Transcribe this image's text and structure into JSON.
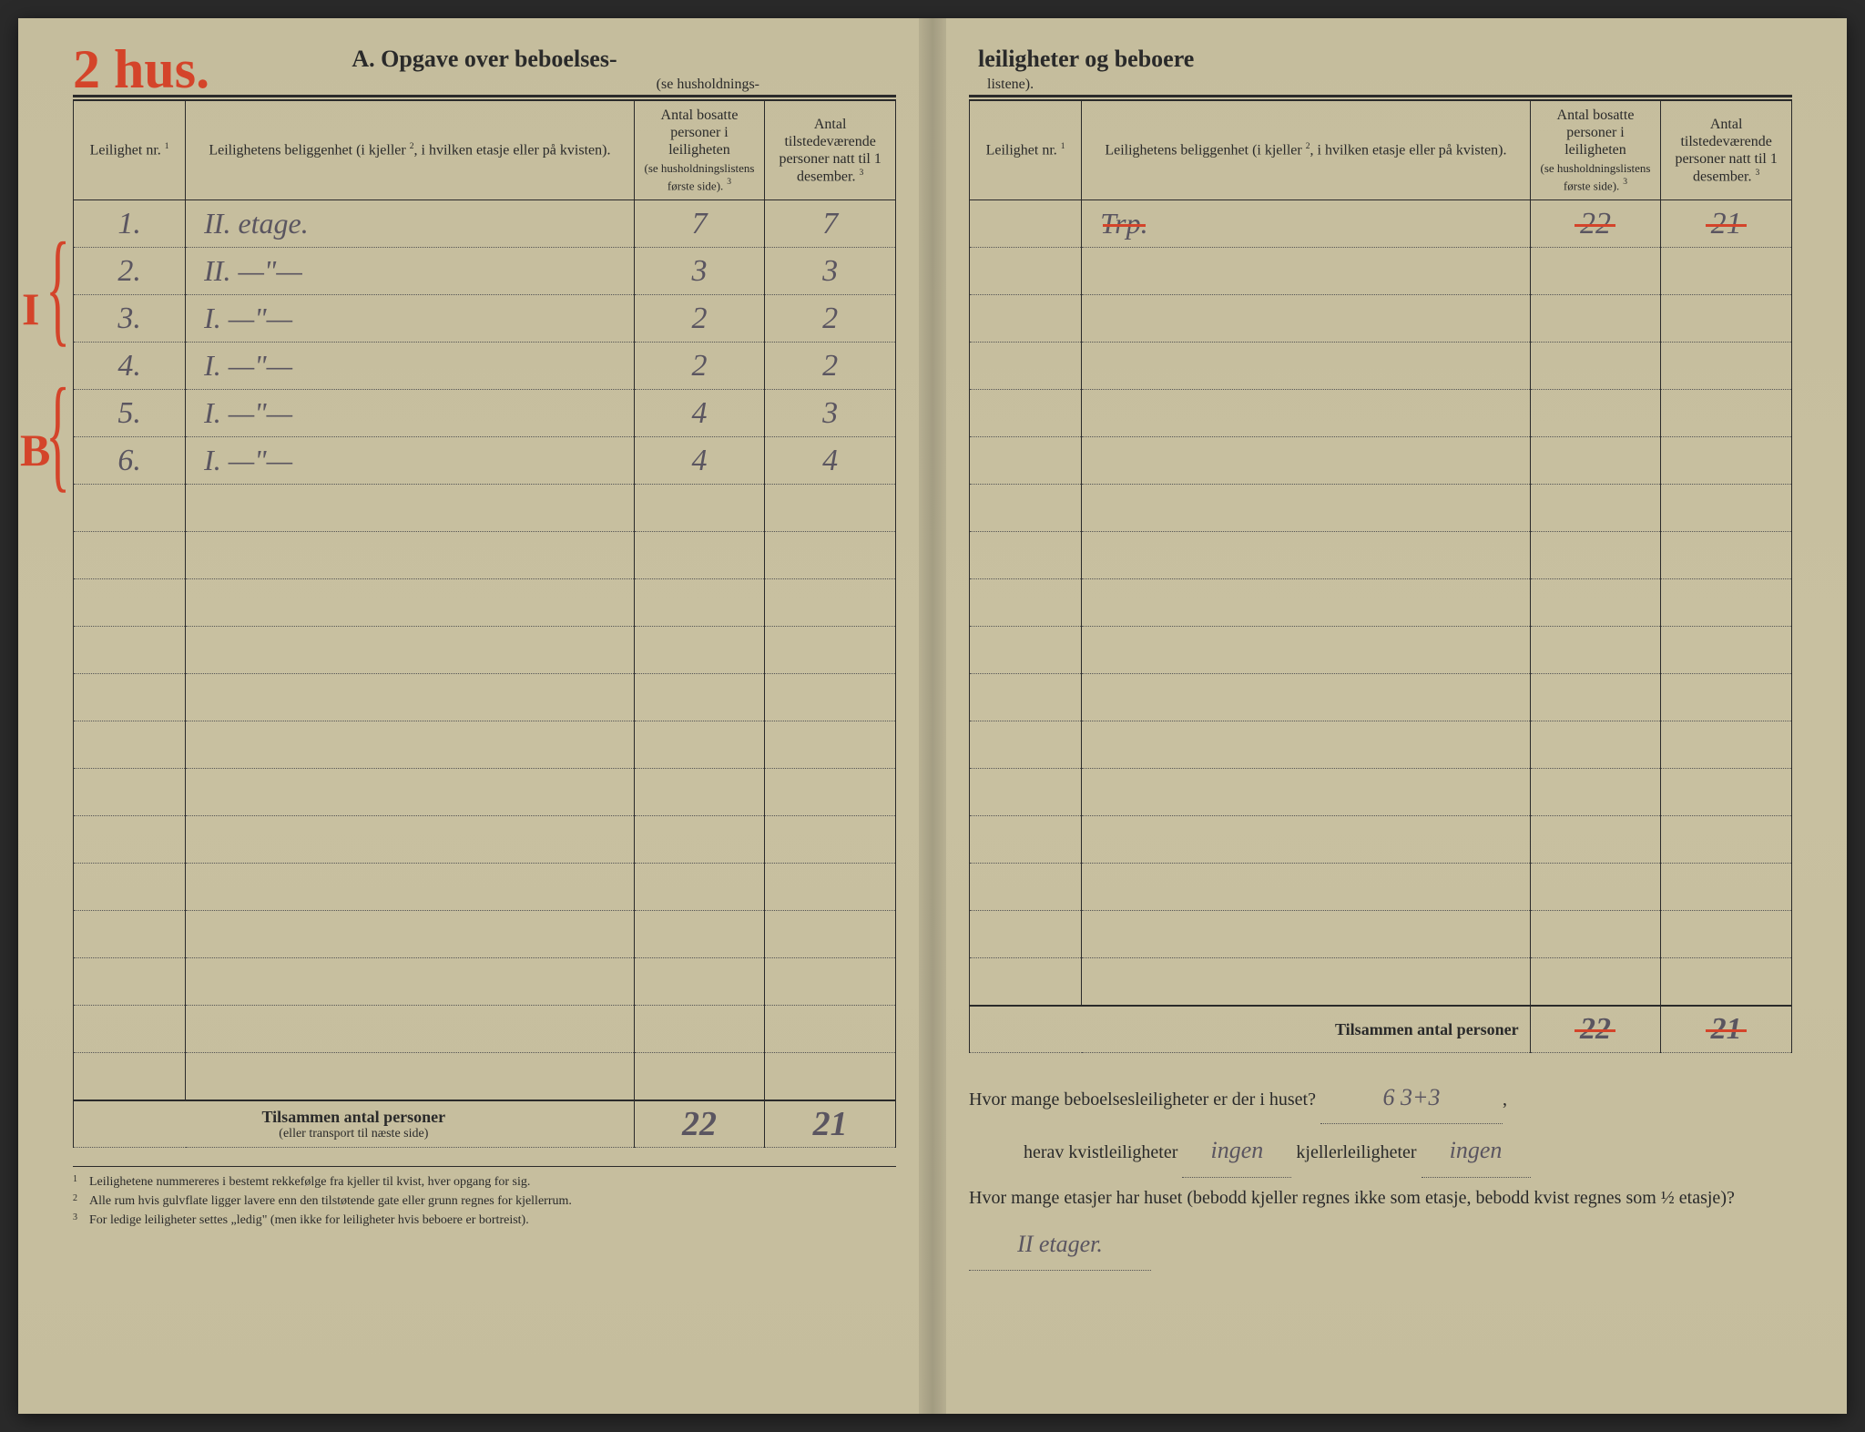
{
  "colors": {
    "paper": "#c8c0a0",
    "ink": "#2a2a2a",
    "red_pencil": "#d4442a",
    "pencil": "#5a5560"
  },
  "annotations": {
    "top_left_red": "2 hus.",
    "left_margin_red_top": "I",
    "left_margin_red_bottom": "B"
  },
  "header": {
    "left_title": "A.  Opgave over beboelses-",
    "left_sub": "(se husholdnings-",
    "right_title": "leiligheter og beboere",
    "right_sub": "listene)."
  },
  "columns": {
    "c1": "Leilighet nr.",
    "c1_sup": "1",
    "c2": "Leilighetens beliggenhet (i kjeller",
    "c2_sup": "2",
    "c2_rest": ", i hvilken etasje eller på kvisten).",
    "c3a": "Antal bosatte personer i leiligheten",
    "c3b": "(se husholdningslistens første side).",
    "c3_sup": "3",
    "c4a": "Antal tilstedeværende personer natt til 1 desember.",
    "c4_sup": "3"
  },
  "left_rows": [
    {
      "nr": "1.",
      "loc": "II. etage.",
      "bos": "7",
      "til": "7"
    },
    {
      "nr": "2.",
      "loc": "II.   —\"—",
      "bos": "3",
      "til": "3"
    },
    {
      "nr": "3.",
      "loc": "I.    —\"—",
      "bos": "2",
      "til": "2"
    },
    {
      "nr": "4.",
      "loc": "I.    —\"—",
      "bos": "2",
      "til": "2"
    },
    {
      "nr": "5.",
      "loc": "I.    —\"—",
      "bos": "4",
      "til": "3"
    },
    {
      "nr": "6.",
      "loc": "I.    —\"—",
      "bos": "4",
      "til": "4"
    }
  ],
  "left_blank_rows": 13,
  "right_rows": [
    {
      "nr": "",
      "loc": "Trp.",
      "bos": "22",
      "til": "21",
      "struck": true
    }
  ],
  "right_blank_rows": 16,
  "left_totals": {
    "label": "Tilsammen antal personer",
    "sublabel": "(eller transport til næste side)",
    "bos": "22",
    "til": "21"
  },
  "right_totals": {
    "label": "Tilsammen antal personer",
    "bos": "22",
    "til": "21",
    "struck": true
  },
  "footnotes": [
    {
      "n": "1",
      "t": "Leilighetene nummereres i bestemt rekkefølge fra kjeller til kvist, hver opgang for sig."
    },
    {
      "n": "2",
      "t": "Alle rum hvis gulvflate ligger lavere enn den tilstøtende gate eller grunn regnes for kjellerrum."
    },
    {
      "n": "3",
      "t": "For ledige leiligheter settes „ledig\" (men ikke for leiligheter hvis beboere er bortreist)."
    }
  ],
  "questions": {
    "q1_pre": "Hvor mange beboelsesleiligheter er der i huset?",
    "q1_ans": "6   3+3",
    "q2_pre": "herav kvistleiligheter",
    "q2_ans1": "ingen",
    "q2_mid": "kjellerleiligheter",
    "q2_ans2": "ingen",
    "q3": "Hvor mange etasjer har huset (bebodd kjeller regnes ikke som etasje, bebodd kvist regnes som ½ etasje)?",
    "q3_ans": "II etager."
  }
}
